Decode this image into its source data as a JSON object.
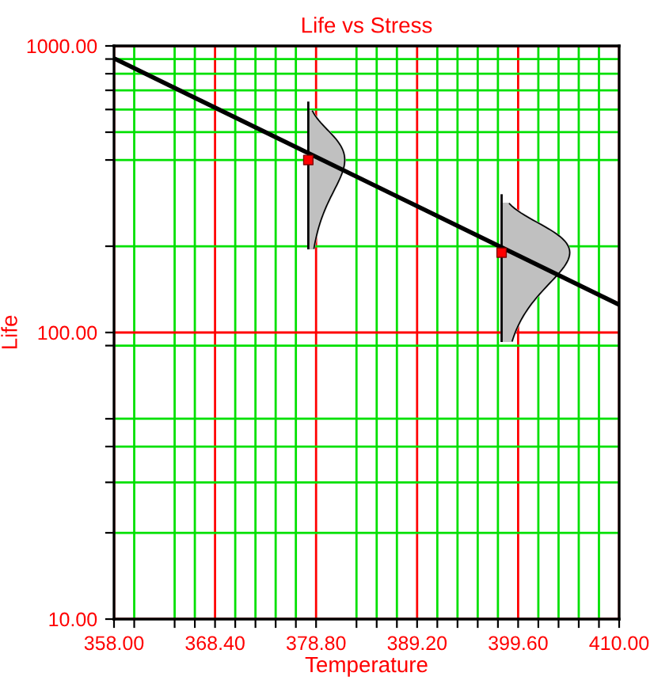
{
  "chart_data": {
    "type": "line",
    "title": "Life vs Stress",
    "xlabel": "Temperature",
    "ylabel": "Life",
    "log": "y",
    "grid": true,
    "legend": false,
    "xlim": [
      358,
      410
    ],
    "ylim": [
      10,
      1000
    ],
    "xticks": [
      {
        "value": 358,
        "label": "358.00"
      },
      {
        "value": 360.08,
        "label": null
      },
      {
        "value": 364.24,
        "label": null
      },
      {
        "value": 366.32,
        "label": null
      },
      {
        "value": 368.4,
        "label": "368.40"
      },
      {
        "value": 370.48,
        "label": null
      },
      {
        "value": 372.56,
        "label": null
      },
      {
        "value": 374.64,
        "label": null
      },
      {
        "value": 376.72,
        "label": null
      },
      {
        "value": 378.8,
        "label": "378.80"
      },
      {
        "value": 382.96,
        "label": null
      },
      {
        "value": 385.04,
        "label": null
      },
      {
        "value": 387.12,
        "label": null
      },
      {
        "value": 389.2,
        "label": "389.20"
      },
      {
        "value": 391.28,
        "label": null
      },
      {
        "value": 393.36,
        "label": null
      },
      {
        "value": 395.44,
        "label": null
      },
      {
        "value": 397.52,
        "label": null
      },
      {
        "value": 399.6,
        "label": "399.60"
      },
      {
        "value": 401.68,
        "label": null
      },
      {
        "value": 403.76,
        "label": null
      },
      {
        "value": 405.84,
        "label": null
      },
      {
        "value": 407.92,
        "label": null
      },
      {
        "value": 410,
        "label": "410.00"
      }
    ],
    "yticks": [
      {
        "value": 10,
        "label": "10.00"
      },
      {
        "value": 20,
        "label": null
      },
      {
        "value": 30,
        "label": null
      },
      {
        "value": 40,
        "label": null
      },
      {
        "value": 50,
        "label": null
      },
      {
        "value": 90,
        "label": null
      },
      {
        "value": 100,
        "label": "100.00"
      },
      {
        "value": 200,
        "label": null
      },
      {
        "value": 400,
        "label": null
      },
      {
        "value": 500,
        "label": null
      },
      {
        "value": 600,
        "label": null
      },
      {
        "value": 700,
        "label": null
      },
      {
        "value": 800,
        "label": null
      },
      {
        "value": 900,
        "label": null
      },
      {
        "value": 1000,
        "label": "1000.00"
      }
    ],
    "series": [
      {
        "color": "#000000",
        "x": [
          358,
          410
        ],
        "values": [
          905,
          125
        ],
        "marker": "none"
      },
      {
        "type": "scatter",
        "color": "#ff0000",
        "x": [
          378.0,
          397.9
        ],
        "values": [
          400,
          190
        ],
        "marker": "square"
      }
    ]
  }
}
